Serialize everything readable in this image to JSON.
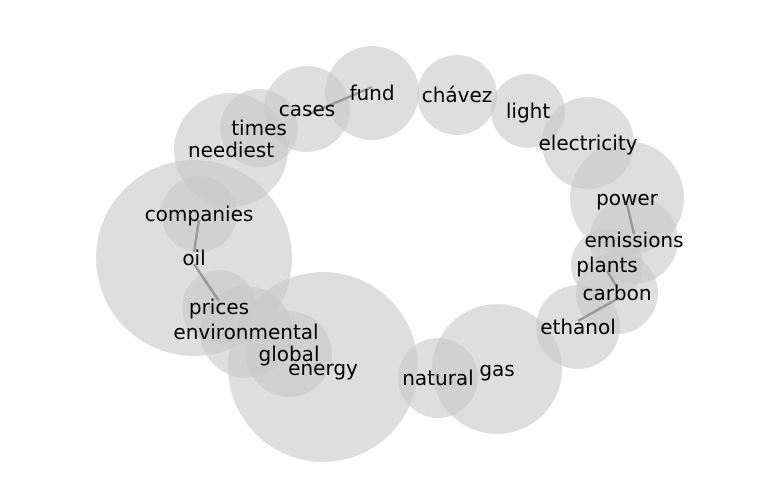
{
  "diagram": {
    "words": [
      {
        "id": "fund",
        "text": "fund"
      },
      {
        "id": "chavez",
        "text": "chávez"
      },
      {
        "id": "light",
        "text": "light"
      },
      {
        "id": "cases",
        "text": "cases"
      },
      {
        "id": "times",
        "text": "times"
      },
      {
        "id": "neediest",
        "text": "neediest"
      },
      {
        "id": "electricity",
        "text": "electricity"
      },
      {
        "id": "power",
        "text": "power"
      },
      {
        "id": "emissions",
        "text": "emissions"
      },
      {
        "id": "plants",
        "text": "plants"
      },
      {
        "id": "carbon",
        "text": "carbon"
      },
      {
        "id": "ethanol",
        "text": "ethanol"
      },
      {
        "id": "companies",
        "text": "companies"
      },
      {
        "id": "oil",
        "text": "oil"
      },
      {
        "id": "prices",
        "text": "prices"
      },
      {
        "id": "environmental",
        "text": "environmental"
      },
      {
        "id": "global",
        "text": "global"
      },
      {
        "id": "energy",
        "text": "energy"
      },
      {
        "id": "natural",
        "text": "natural"
      },
      {
        "id": "gas",
        "text": "gas"
      }
    ],
    "links": [
      [
        "cases",
        "fund"
      ],
      [
        "companies",
        "oil"
      ],
      [
        "oil",
        "prices"
      ],
      [
        "power",
        "emissions"
      ],
      [
        "plants",
        "carbon"
      ],
      [
        "carbon",
        "ethanol"
      ]
    ],
    "colors": {
      "bubble": "#c8c8c8",
      "link": "#999999",
      "text": "#000000"
    }
  }
}
